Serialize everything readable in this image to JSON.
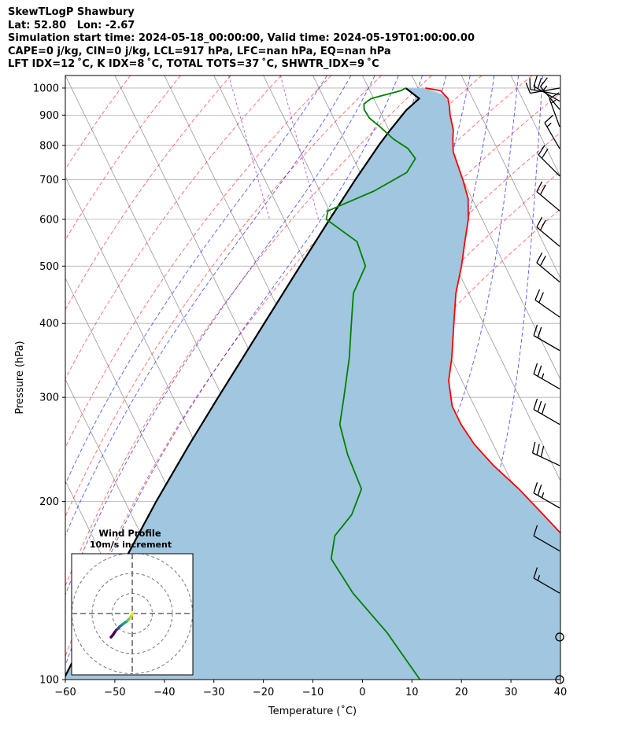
{
  "header": {
    "line1": "SkewTLogP Shawbury",
    "line2": "Lat: 52.80   Lon: -2.67",
    "line3": "Simulation start time: 2024-05-18_00:00:00, Valid time: 2024-05-19T01:00:00.00",
    "line4": "CAPE=0 j/kg, CIN=0 j/kg, LCL=917 hPa, LFC=nan hPa, EQ=nan hPa",
    "line5": "LFT IDX=12 ˚C, K IDX=8 ˚C, TOTAL TOTS=37 ˚C, SHWTR_IDX=9 ˚C"
  },
  "colors": {
    "temperature": "#ff0000",
    "dewpoint": "#008000",
    "parcel": "#000000",
    "cin_fill": "#a1c6df",
    "dry_adiabat": "#ff0000",
    "moist_adiabat": "#0000ff",
    "mixing_ratio": "#9400d3",
    "isotherm": "#999999"
  },
  "chart_data": {
    "type": "skewt",
    "xlabel": "Temperature ($^\\circ$C)",
    "ylabel": "Pressure (hPa)",
    "xlim": [
      -60,
      40
    ],
    "ylim": [
      1050,
      100
    ],
    "x_ticks": [
      -60,
      -50,
      -40,
      -30,
      -20,
      -10,
      0,
      10,
      20,
      30,
      40
    ],
    "x_tick_labels": [
      "−60",
      "−50",
      "−40",
      "−30",
      "−20",
      "−10",
      "0",
      "10",
      "20",
      "30",
      "40"
    ],
    "y_ticks": [
      1000,
      900,
      800,
      700,
      600,
      500,
      400,
      300,
      200,
      100
    ],
    "y_tick_labels": [
      "1000",
      "900",
      "800",
      "700",
      "600",
      "500",
      "400",
      "300",
      "200",
      "100"
    ],
    "grid": true,
    "temperature": [
      [
        1000,
        11.5
      ],
      [
        990,
        14.3
      ],
      [
        960,
        15.0
      ],
      [
        930,
        14.5
      ],
      [
        900,
        13.8
      ],
      [
        850,
        13.0
      ],
      [
        820,
        12.0
      ],
      [
        780,
        10.8
      ],
      [
        700,
        10.0
      ],
      [
        650,
        9.2
      ],
      [
        600,
        7.2
      ],
      [
        550,
        4.3
      ],
      [
        500,
        1.2
      ],
      [
        450,
        -2.6
      ],
      [
        400,
        -6.0
      ],
      [
        350,
        -9.8
      ],
      [
        320,
        -12.7
      ],
      [
        290,
        -14.5
      ],
      [
        270,
        -14.5
      ],
      [
        250,
        -13.8
      ],
      [
        230,
        -12.0
      ],
      [
        210,
        -9.2
      ],
      [
        190,
        -6.8
      ],
      [
        170,
        -4.2
      ],
      [
        150,
        -0.9
      ],
      [
        135,
        1.6
      ],
      [
        125,
        2.1
      ],
      [
        115,
        2.3
      ],
      [
        100,
        3.1
      ]
    ],
    "dewpoint": [
      [
        1000,
        7.5
      ],
      [
        990,
        6.3
      ],
      [
        960,
        -0.5
      ],
      [
        940,
        -2.5
      ],
      [
        920,
        -3.0
      ],
      [
        890,
        -2.8
      ],
      [
        860,
        -1.5
      ],
      [
        820,
        0.0
      ],
      [
        790,
        2.0
      ],
      [
        760,
        2.5
      ],
      [
        720,
        -0.6
      ],
      [
        670,
        -9.0
      ],
      [
        620,
        -20.3
      ],
      [
        600,
        -21.5
      ],
      [
        550,
        -17.5
      ],
      [
        500,
        -18.2
      ],
      [
        450,
        -23.3
      ],
      [
        400,
        -26.7
      ],
      [
        350,
        -30.5
      ],
      [
        300,
        -35.5
      ],
      [
        270,
        -39.0
      ],
      [
        240,
        -40.4
      ],
      [
        210,
        -41.0
      ],
      [
        190,
        -45.5
      ],
      [
        175,
        -51.0
      ],
      [
        160,
        -54.0
      ],
      [
        140,
        -53.0
      ],
      [
        120,
        -50.0
      ],
      [
        100,
        -48.0
      ]
    ],
    "parcel": [
      [
        1000,
        7.5
      ],
      [
        960,
        9.2
      ],
      [
        917,
        5.4
      ],
      [
        850,
        0.3
      ],
      [
        800,
        -3.6
      ],
      [
        700,
        -11.7
      ],
      [
        600,
        -20.8
      ],
      [
        500,
        -31.4
      ],
      [
        400,
        -44.3
      ],
      [
        300,
        -60.9
      ],
      [
        250,
        -71.3
      ],
      [
        200,
        -83.7
      ],
      [
        150,
        -99.0
      ],
      [
        100,
        -120.0
      ]
    ],
    "isotherms": [
      -100,
      -90,
      -80,
      -70,
      -60,
      -50,
      -40,
      -30,
      -20,
      -10,
      0,
      10,
      20,
      30,
      40
    ],
    "dry_adiabats": [
      -50,
      -40,
      -30,
      -20,
      -10,
      0,
      10,
      20,
      30,
      40,
      50,
      60,
      70
    ],
    "moist_adiabats": [
      -10,
      -5,
      0,
      5,
      10,
      15,
      20,
      25,
      30,
      35
    ],
    "mixing_ratios": [
      0.4,
      1
    ],
    "wind_barbs": [
      {
        "p": 100,
        "speed": 0,
        "dir": 0
      },
      {
        "p": 118,
        "speed": 0,
        "dir": 0
      },
      {
        "p": 140,
        "speed": 15,
        "dir": 300
      },
      {
        "p": 165,
        "speed": 10,
        "dir": 300
      },
      {
        "p": 195,
        "speed": 25,
        "dir": 300
      },
      {
        "p": 230,
        "speed": 30,
        "dir": 295
      },
      {
        "p": 270,
        "speed": 30,
        "dir": 300
      },
      {
        "p": 310,
        "speed": 25,
        "dir": 300
      },
      {
        "p": 360,
        "speed": 20,
        "dir": 300
      },
      {
        "p": 410,
        "speed": 20,
        "dir": 305
      },
      {
        "p": 470,
        "speed": 20,
        "dir": 310
      },
      {
        "p": 540,
        "speed": 20,
        "dir": 310
      },
      {
        "p": 620,
        "speed": 20,
        "dir": 310
      },
      {
        "p": 710,
        "speed": 20,
        "dir": 315
      },
      {
        "p": 790,
        "speed": 15,
        "dir": 330
      },
      {
        "p": 860,
        "speed": 15,
        "dir": 340
      },
      {
        "p": 920,
        "speed": 15,
        "dir": 320
      },
      {
        "p": 950,
        "speed": 20,
        "dir": 300
      },
      {
        "p": 975,
        "speed": 15,
        "dir": 280
      },
      {
        "p": 1000,
        "speed": 10,
        "dir": 260
      }
    ],
    "hodograph": {
      "title": "Wind Profile",
      "subtitle": "10m/s increment",
      "rings": [
        10,
        20,
        30
      ],
      "points": [
        [
          0.0,
          0.0
        ],
        [
          -0.7,
          -1.5
        ],
        [
          -1.8,
          -3.0
        ],
        [
          -2.8,
          -4.0
        ],
        [
          -3.5,
          -4.4
        ],
        [
          -4.3,
          -5.0
        ],
        [
          -5.3,
          -5.8
        ],
        [
          -6.2,
          -6.5
        ],
        [
          -7.0,
          -7.4
        ],
        [
          -8.0,
          -8.3
        ],
        [
          -8.8,
          -9.4
        ],
        [
          -9.5,
          -10.5
        ],
        [
          -10.6,
          -11.8
        ]
      ]
    }
  }
}
